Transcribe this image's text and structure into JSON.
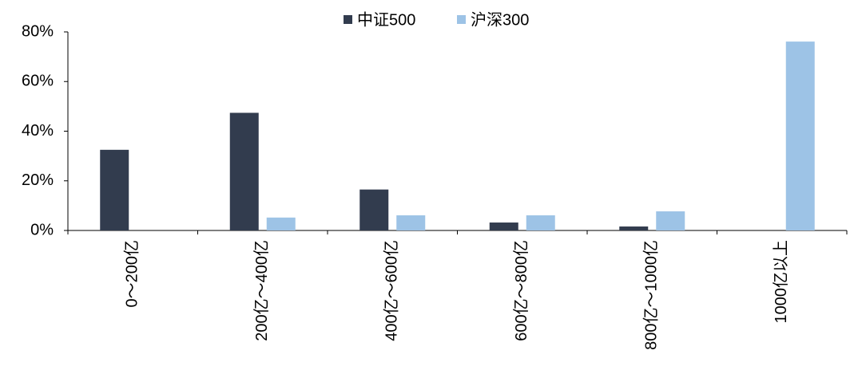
{
  "chart_data": {
    "type": "bar",
    "categories": [
      "0～200亿",
      "200亿～400亿",
      "400亿～600亿",
      "600亿～800亿",
      "800亿～1000亿",
      "1000亿以上"
    ],
    "series": [
      {
        "name": "中证500",
        "color": "#323c4e",
        "values": [
          32.5,
          47.4,
          16.5,
          3.2,
          1.6,
          0
        ]
      },
      {
        "name": "沪深300",
        "color": "#9dc3e6",
        "values": [
          0,
          5.2,
          6.1,
          6.1,
          7.7,
          76.1
        ]
      }
    ],
    "ylim": [
      0,
      80
    ],
    "yticks": [
      {
        "value": 0,
        "label": "0%"
      },
      {
        "value": 20,
        "label": "20%"
      },
      {
        "value": 40,
        "label": "40%"
      },
      {
        "value": 60,
        "label": "60%"
      },
      {
        "value": 80,
        "label": "80%"
      }
    ],
    "legend": "top"
  }
}
